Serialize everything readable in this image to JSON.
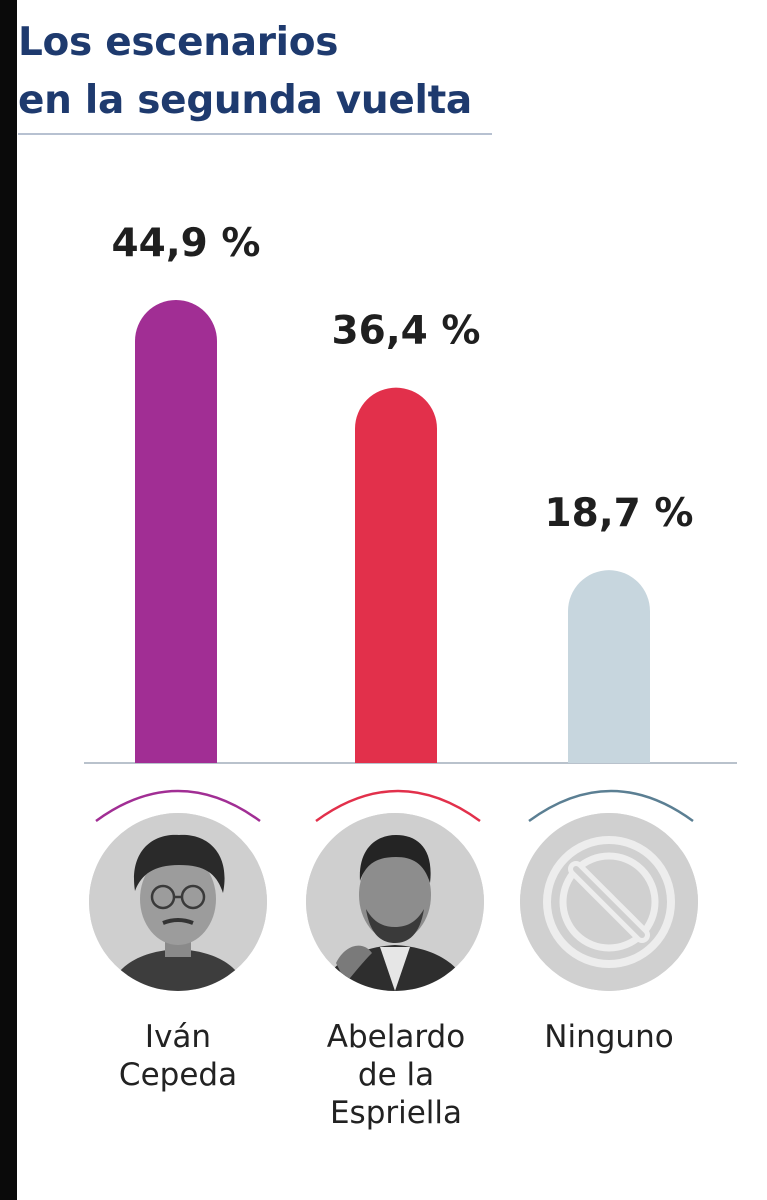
{
  "title": {
    "line1": "Los escenarios",
    "line2": "en la segunda vuelta"
  },
  "colors": {
    "title": "#1e3a6e",
    "ivan_cepeda": "#a12e94",
    "abelardo": "#e2304b",
    "ninguno": "#c7d6de",
    "ninguno_arc": "#5b7f93"
  },
  "chart_data": {
    "type": "bar",
    "title": "Los escenarios en la segunda vuelta",
    "categories": [
      "Iván Cepeda",
      "Abelardo de la Espriella",
      "Ninguno"
    ],
    "values": [
      44.9,
      36.4,
      18.7
    ],
    "value_labels": [
      "44,9 %",
      "36,4 %",
      "18,7 %"
    ],
    "unit": "%",
    "ylim": [
      0,
      50
    ],
    "grid": false,
    "legend": "none"
  },
  "candidates": [
    {
      "lines": [
        "Iván",
        "Cepeda"
      ],
      "icon": "portrait-photo"
    },
    {
      "lines": [
        "Abelardo",
        "de la",
        "Espriella"
      ],
      "icon": "portrait-photo"
    },
    {
      "lines": [
        "Ninguno"
      ],
      "icon": "no-symbol-icon"
    }
  ]
}
